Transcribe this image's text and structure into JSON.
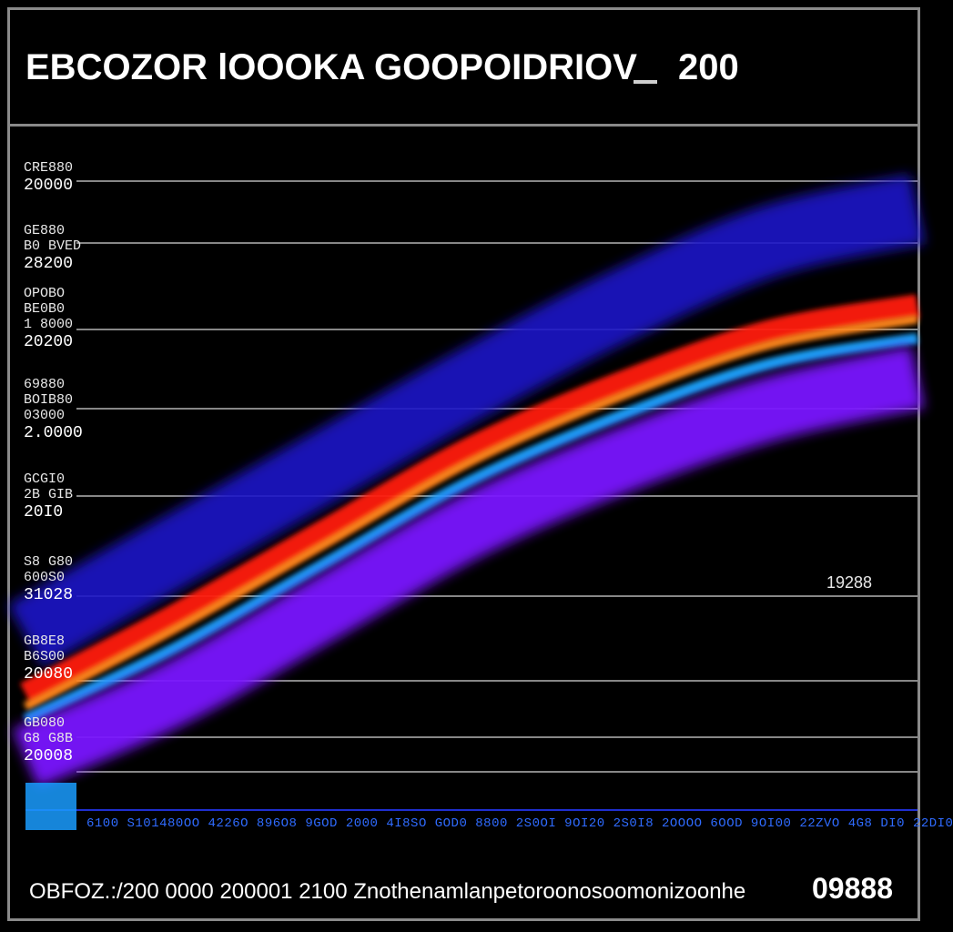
{
  "chart_data": {
    "type": "area",
    "title": "EBCOZOR lOOOKA GOOPOIDRIOV",
    "title_suffix": "200",
    "x_tick_text": "6100 S101480OO 4226O 896O8 9GOD 2000 4I8SO GOD0 8800 2S0OI 9OI20 2S0I8 2OOOO 6OOD 9OI00 22ZVO 4G8 DI0 22DI0",
    "x_ticks": [
      "6100",
      "S1014",
      "80OO",
      "4226O",
      "896O8",
      "9GOD",
      "2000",
      "4I8SO",
      "GOD0",
      "8800",
      "2S0OI",
      "9OI20",
      "2S0I8",
      "2OOOO",
      "6OOD",
      "9OI00",
      "22ZVO",
      "4G8 DI0",
      "22DI0"
    ],
    "y_labels": [
      {
        "lines": [
          "CRE880"
        ],
        "value": "20000"
      },
      {
        "lines": [
          "GE880",
          "B0 BVED"
        ],
        "value": "28200"
      },
      {
        "lines": [
          "OPOBO",
          "BE0B0",
          "1 8000"
        ],
        "value": "20200"
      },
      {
        "lines": [
          "69880",
          "BOIB80",
          "03000"
        ],
        "value": "2.0000"
      },
      {
        "lines": [
          "GCGI0",
          "2B GIB"
        ],
        "value": "20I0"
      },
      {
        "lines": [
          "S8 G80",
          "600S0"
        ],
        "value": "31028"
      },
      {
        "lines": [
          "GB8E8",
          "B6S00"
        ],
        "value": "20080"
      },
      {
        "lines": [
          "GB080",
          "G8 G8B"
        ],
        "value": "20008"
      }
    ],
    "annotation": "19288",
    "footer": "OBFOZ.:/200 0000 200001 2100 Znothenamlanpetoroonosoomonizoonhe",
    "footer_right": "09888",
    "grid": true,
    "background": "#000000",
    "series": [
      {
        "color": "#1a12c8",
        "values": [
          0.27,
          0.4,
          0.53,
          0.66,
          0.78,
          0.88,
          0.93
        ]
      },
      {
        "color": "#ff1a0a",
        "values": [
          0.18,
          0.3,
          0.43,
          0.56,
          0.66,
          0.74,
          0.78
        ]
      },
      {
        "color": "#ff8a1a",
        "values": [
          0.16,
          0.28,
          0.41,
          0.54,
          0.64,
          0.72,
          0.76
        ]
      },
      {
        "color": "#1fa6ff",
        "values": [
          0.14,
          0.25,
          0.38,
          0.51,
          0.61,
          0.69,
          0.73
        ]
      },
      {
        "color": "#7a17ff",
        "values": [
          0.08,
          0.18,
          0.31,
          0.44,
          0.54,
          0.62,
          0.67
        ]
      }
    ],
    "x_range": [
      0,
      6
    ],
    "y_range": [
      0,
      1
    ]
  }
}
